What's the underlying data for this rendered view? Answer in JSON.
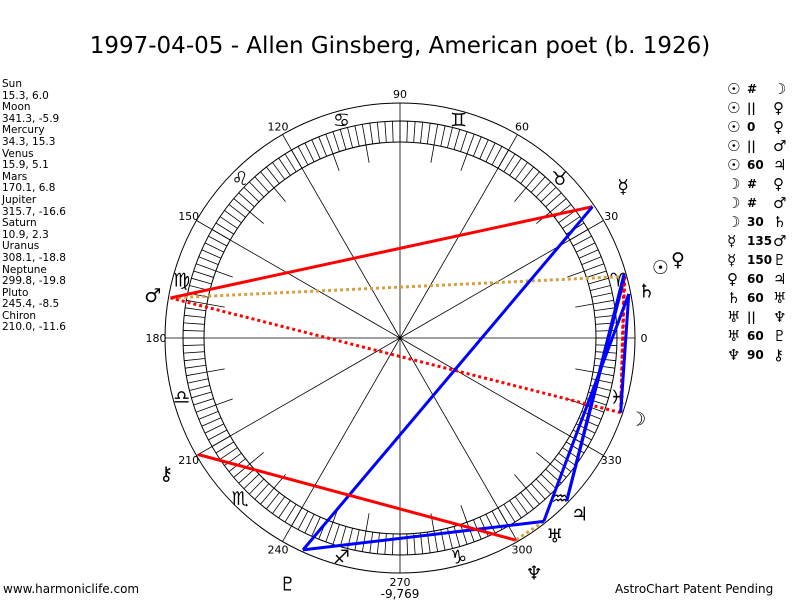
{
  "title": "1997-04-05 - Allen Ginsberg, American poet (b. 1926)",
  "planets": [
    {
      "name": "Sun",
      "glyph": "☉",
      "coords": "15.3, 6.0",
      "lon": 15.3
    },
    {
      "name": "Moon",
      "glyph": "☽",
      "coords": "341.3, -5.9",
      "lon": 341.3
    },
    {
      "name": "Mercury",
      "glyph": "☿",
      "coords": "34.3, 15.3",
      "lon": 34.3
    },
    {
      "name": "Venus",
      "glyph": "♀",
      "coords": "15.9, 5.1",
      "lon": 15.9
    },
    {
      "name": "Mars",
      "glyph": "♂",
      "coords": "170.1, 6.8",
      "lon": 170.1
    },
    {
      "name": "Jupiter",
      "glyph": "♃",
      "coords": "315.7, -16.6",
      "lon": 315.7
    },
    {
      "name": "Saturn",
      "glyph": "♄",
      "coords": "10.9, 2.3",
      "lon": 10.9
    },
    {
      "name": "Uranus",
      "glyph": "♅",
      "coords": "308.1, -18.8",
      "lon": 308.1
    },
    {
      "name": "Neptune",
      "glyph": "♆",
      "coords": "299.8, -19.8",
      "lon": 299.8
    },
    {
      "name": "Pluto",
      "glyph": "♇",
      "coords": "245.4, -8.5",
      "lon": 245.4
    },
    {
      "name": "Chiron",
      "glyph": "⚷",
      "coords": "210.0, -11.6",
      "lon": 210.0
    }
  ],
  "aspects": [
    {
      "p1": "Sun",
      "g1": "☉",
      "sym": "#",
      "g2": "☽",
      "p2": "Moon",
      "style": "contra"
    },
    {
      "p1": "Sun",
      "g1": "☉",
      "sym": "||",
      "g2": "♀",
      "p2": "Venus",
      "style": "parallel"
    },
    {
      "p1": "Sun",
      "g1": "☉",
      "sym": "0",
      "g2": "♀",
      "p2": "Venus",
      "style": "none"
    },
    {
      "p1": "Sun",
      "g1": "☉",
      "sym": "||",
      "g2": "♂",
      "p2": "Mars",
      "style": "parallel"
    },
    {
      "p1": "Sun",
      "g1": "☉",
      "sym": "60",
      "g2": "♃",
      "p2": "Jupiter",
      "style": "soft"
    },
    {
      "p1": "Moon",
      "g1": "☽",
      "sym": "#",
      "g2": "♀",
      "p2": "Venus",
      "style": "contra"
    },
    {
      "p1": "Moon",
      "g1": "☽",
      "sym": "#",
      "g2": "♂",
      "p2": "Mars",
      "style": "contra"
    },
    {
      "p1": "Moon",
      "g1": "☽",
      "sym": "30",
      "g2": "♄",
      "p2": "Saturn",
      "style": "soft"
    },
    {
      "p1": "Mercury",
      "g1": "☿",
      "sym": "135",
      "g2": "♂",
      "p2": "Mars",
      "style": "hard"
    },
    {
      "p1": "Mercury",
      "g1": "☿",
      "sym": "150",
      "g2": "♇",
      "p2": "Pluto",
      "style": "soft"
    },
    {
      "p1": "Venus",
      "g1": "♀",
      "sym": "60",
      "g2": "♃",
      "p2": "Jupiter",
      "style": "soft"
    },
    {
      "p1": "Saturn",
      "g1": "♄",
      "sym": "60",
      "g2": "♅",
      "p2": "Uranus",
      "style": "soft"
    },
    {
      "p1": "Uranus",
      "g1": "♅",
      "sym": "||",
      "g2": "♆",
      "p2": "Neptune",
      "style": "parallel"
    },
    {
      "p1": "Uranus",
      "g1": "♅",
      "sym": "60",
      "g2": "♇",
      "p2": "Pluto",
      "style": "soft"
    },
    {
      "p1": "Neptune",
      "g1": "♆",
      "sym": "90",
      "g2": "⚷",
      "p2": "Chiron",
      "style": "hard"
    }
  ],
  "signs": [
    "♈",
    "♉",
    "♊",
    "♋",
    "♌",
    "♍",
    "♎",
    "♏",
    "♐",
    "♑",
    "♒",
    "♓"
  ],
  "degree_labels": [
    "0",
    "30",
    "60",
    "90",
    "120",
    "150",
    "180",
    "210",
    "240",
    "270",
    "300",
    "330"
  ],
  "bottom_value": "-9,769",
  "colors": {
    "hard": "#ff0000",
    "soft": "#0000ff",
    "contra": "#ff0000",
    "parallel": "#d4a040"
  },
  "footer": {
    "left": "www.harmoniclife.com",
    "right": "AstroChart Patent Pending"
  }
}
